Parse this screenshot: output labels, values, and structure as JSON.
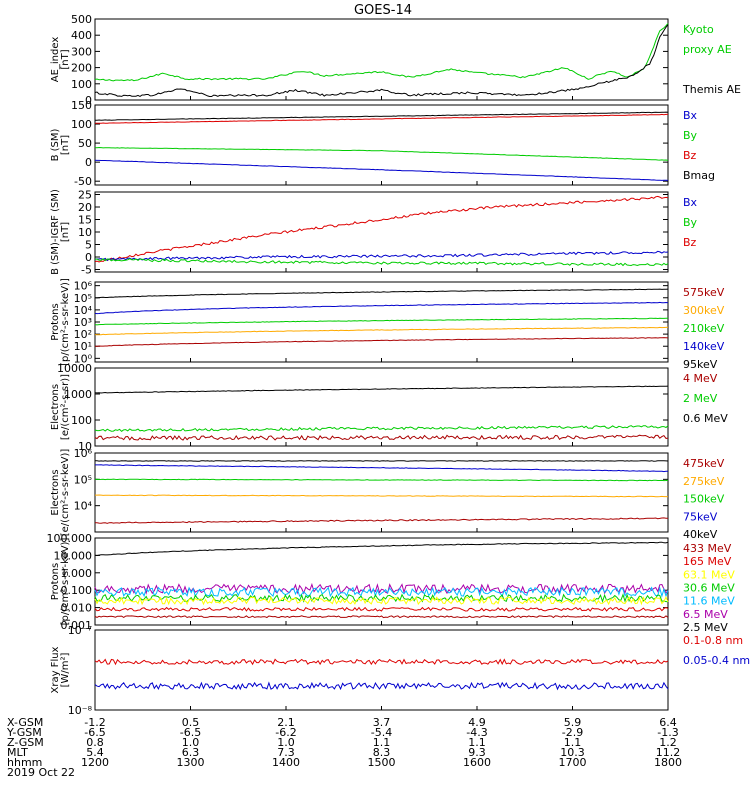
{
  "title": "GOES-14",
  "colors": {
    "black": "#000000",
    "red": "#dd0000",
    "green": "#00cc00",
    "blue": "#0000cc",
    "orange": "#ffaa00",
    "yellow": "#ffff00",
    "cyan": "#00bbff",
    "purple": "#aa00aa",
    "darkred": "#aa0000"
  },
  "chart_data": [
    {
      "type": "line",
      "panel": "ae",
      "ylabel": "AE_index\n[nT]",
      "ylim": [
        0,
        500
      ],
      "ticks": [
        {
          "v": 0,
          "label": "0"
        },
        {
          "v": 100,
          "label": "100"
        },
        {
          "v": 200,
          "label": "200"
        },
        {
          "v": 300,
          "label": "300"
        },
        {
          "v": 400,
          "label": "400"
        },
        {
          "v": 500,
          "label": "500"
        }
      ],
      "legend": [
        {
          "text": "Kyoto",
          "color": "green"
        },
        {
          "text": "proxy AE",
          "color": "green"
        },
        {
          "text": "",
          "color": "black"
        },
        {
          "text": "Themis AE",
          "color": "black"
        }
      ],
      "series": [
        {
          "name": "Kyoto proxy AE",
          "color": "green",
          "base": [
            [
              0,
              125
            ],
            [
              0.07,
              120
            ],
            [
              0.12,
              165
            ],
            [
              0.16,
              130
            ],
            [
              0.3,
              130
            ],
            [
              0.36,
              180
            ],
            [
              0.4,
              150
            ],
            [
              0.5,
              175
            ],
            [
              0.55,
              140
            ],
            [
              0.62,
              190
            ],
            [
              0.66,
              170
            ],
            [
              0.75,
              140
            ],
            [
              0.82,
              200
            ],
            [
              0.86,
              130
            ],
            [
              0.9,
              180
            ],
            [
              0.93,
              140
            ],
            [
              0.96,
              200
            ],
            [
              0.985,
              420
            ],
            [
              1.0,
              470
            ]
          ],
          "noise": 5
        },
        {
          "name": "Themis AE",
          "color": "black",
          "base": [
            [
              0,
              45
            ],
            [
              0.05,
              25
            ],
            [
              0.1,
              30
            ],
            [
              0.15,
              70
            ],
            [
              0.2,
              25
            ],
            [
              0.3,
              30
            ],
            [
              0.35,
              60
            ],
            [
              0.4,
              30
            ],
            [
              0.5,
              60
            ],
            [
              0.55,
              30
            ],
            [
              0.65,
              45
            ],
            [
              0.75,
              30
            ],
            [
              0.85,
              70
            ],
            [
              0.88,
              100
            ],
            [
              0.94,
              150
            ],
            [
              0.97,
              230
            ],
            [
              0.985,
              380
            ],
            [
              1.0,
              470
            ]
          ],
          "noise": 6
        }
      ]
    },
    {
      "type": "line",
      "panel": "b",
      "ylabel": "B (SM)\n[nT]",
      "ylim": [
        -60,
        150
      ],
      "ticks": [
        {
          "v": -50,
          "label": "-50"
        },
        {
          "v": 0,
          "label": "0"
        },
        {
          "v": 50,
          "label": "50"
        },
        {
          "v": 100,
          "label": "100"
        },
        {
          "v": 150,
          "label": "150"
        }
      ],
      "legend": [
        {
          "text": "Bx",
          "color": "blue"
        },
        {
          "text": "By",
          "color": "green"
        },
        {
          "text": "Bz",
          "color": "red"
        },
        {
          "text": "Bmag",
          "color": "black"
        }
      ],
      "series": [
        {
          "name": "Bmag",
          "color": "black",
          "base": [
            [
              0,
              110
            ],
            [
              1,
              131
            ]
          ],
          "noise": 0.5
        },
        {
          "name": "Bz",
          "color": "red",
          "base": [
            [
              0,
              102
            ],
            [
              1,
              125
            ]
          ],
          "noise": 0.5
        },
        {
          "name": "By",
          "color": "green",
          "base": [
            [
              0,
              38
            ],
            [
              0.5,
              30
            ],
            [
              1,
              5
            ]
          ],
          "noise": 0.5
        },
        {
          "name": "Bx",
          "color": "blue",
          "base": [
            [
              0,
              5
            ],
            [
              0.5,
              -20
            ],
            [
              1,
              -48
            ]
          ],
          "noise": 0.5
        }
      ]
    },
    {
      "type": "line",
      "panel": "bdiff",
      "ylabel": "B (SM)-IGRF (SM)\n[nT]",
      "ylim": [
        -6,
        26
      ],
      "ticks": [
        {
          "v": -5,
          "label": "-5"
        },
        {
          "v": 0,
          "label": "0"
        },
        {
          "v": 5,
          "label": "5"
        },
        {
          "v": 10,
          "label": "10"
        },
        {
          "v": 15,
          "label": "15"
        },
        {
          "v": 20,
          "label": "20"
        },
        {
          "v": 25,
          "label": "25"
        }
      ],
      "legend": [
        {
          "text": "Bx",
          "color": "blue"
        },
        {
          "text": "By",
          "color": "green"
        },
        {
          "text": "Bz",
          "color": "red"
        }
      ],
      "series": [
        {
          "name": "Bz",
          "color": "red",
          "base": [
            [
              0,
              -2
            ],
            [
              0.1,
              2
            ],
            [
              0.3,
              9
            ],
            [
              0.5,
              15
            ],
            [
              0.6,
              18
            ],
            [
              0.7,
              20
            ],
            [
              0.85,
              22
            ],
            [
              1,
              24
            ]
          ],
          "noise": 0.5
        },
        {
          "name": "Bx",
          "color": "blue",
          "base": [
            [
              0,
              -1
            ],
            [
              0.3,
              0
            ],
            [
              0.6,
              0.5
            ],
            [
              1,
              2
            ]
          ],
          "noise": 0.5
        },
        {
          "name": "By",
          "color": "green",
          "base": [
            [
              0,
              -1
            ],
            [
              0.3,
              -2
            ],
            [
              0.6,
              -2.5
            ],
            [
              1,
              -3
            ]
          ],
          "noise": 0.5
        }
      ]
    },
    {
      "type": "line",
      "panel": "protons_hi",
      "log": true,
      "ylabel": "Protons\n[p/(cm²-s-sr-keV)]",
      "ylim": [
        0.5,
        2000000
      ],
      "ticks": [
        {
          "v": 1,
          "label": "10⁰"
        },
        {
          "v": 10,
          "label": "10¹"
        },
        {
          "v": 100,
          "label": "10²"
        },
        {
          "v": 1000,
          "label": "10³"
        },
        {
          "v": 10000,
          "label": "10⁴"
        },
        {
          "v": 100000,
          "label": "10⁵"
        },
        {
          "v": 1000000,
          "label": "10⁶"
        }
      ],
      "legend": [
        {
          "text": "575keV",
          "color": "darkred"
        },
        {
          "text": "300keV",
          "color": "orange"
        },
        {
          "text": "210keV",
          "color": "green"
        },
        {
          "text": "140keV",
          "color": "blue"
        },
        {
          "text": "95keV",
          "color": "black"
        }
      ],
      "series": [
        {
          "name": "95keV",
          "color": "black",
          "base": [
            [
              0,
              100000
            ],
            [
              1,
              500000
            ]
          ],
          "noise": 0.02
        },
        {
          "name": "140keV",
          "color": "blue",
          "base": [
            [
              0,
              5000
            ],
            [
              1,
              40000
            ]
          ],
          "noise": 0.02
        },
        {
          "name": "210keV",
          "color": "green",
          "base": [
            [
              0,
              600
            ],
            [
              1,
              2000
            ]
          ],
          "noise": 0.02
        },
        {
          "name": "300keV",
          "color": "orange",
          "base": [
            [
              0,
              90
            ],
            [
              1,
              350
            ]
          ],
          "noise": 0.02
        },
        {
          "name": "575keV",
          "color": "darkred",
          "base": [
            [
              0,
              10
            ],
            [
              1,
              50
            ]
          ],
          "noise": 0.02
        }
      ]
    },
    {
      "type": "line",
      "panel": "electrons_hi",
      "log": true,
      "ylabel": "Electrons\n[e/(cm²-s-sr)]",
      "ylim": [
        10,
        10000
      ],
      "ticks": [
        {
          "v": 10,
          "label": "10"
        },
        {
          "v": 100,
          "label": "100"
        },
        {
          "v": 1000,
          "label": "1000"
        },
        {
          "v": 10000,
          "label": "10000"
        }
      ],
      "legend": [
        {
          "text": "4 MeV",
          "color": "darkred"
        },
        {
          "text": "2 MeV",
          "color": "green"
        },
        {
          "text": "0.6 MeV",
          "color": "black"
        }
      ],
      "series": [
        {
          "name": "0.6 MeV",
          "color": "black",
          "base": [
            [
              0,
              1100
            ],
            [
              1,
              2000
            ]
          ],
          "noise": 0.01
        },
        {
          "name": "2 MeV",
          "color": "green",
          "base": [
            [
              0,
              40
            ],
            [
              1,
              55
            ]
          ],
          "noise": 0.05
        },
        {
          "name": "4 MeV",
          "color": "darkred",
          "base": [
            [
              0,
              20
            ],
            [
              1,
              22
            ]
          ],
          "noise": 0.08
        }
      ]
    },
    {
      "type": "line",
      "panel": "electrons_lo",
      "log": true,
      "ylabel": "Electrons\n[e/(cm²-s-sr-keV)]",
      "ylim": [
        1000,
        1000000
      ],
      "ticks": [
        {
          "v": 10000,
          "label": "10⁴"
        },
        {
          "v": 100000,
          "label": "10⁵"
        },
        {
          "v": 1000000,
          "label": "10⁶"
        }
      ],
      "legend": [
        {
          "text": "475keV",
          "color": "darkred"
        },
        {
          "text": "275keV",
          "color": "orange"
        },
        {
          "text": "150keV",
          "color": "green"
        },
        {
          "text": "75keV",
          "color": "blue"
        },
        {
          "text": "40keV",
          "color": "black"
        }
      ],
      "series": [
        {
          "name": "40keV",
          "color": "black",
          "base": [
            [
              0,
              500000
            ],
            [
              1,
              500000
            ]
          ],
          "noise": 0.01
        },
        {
          "name": "75keV",
          "color": "blue",
          "base": [
            [
              0,
              350000
            ],
            [
              1,
              200000
            ]
          ],
          "noise": 0.01
        },
        {
          "name": "150keV",
          "color": "green",
          "base": [
            [
              0,
              100000
            ],
            [
              1,
              90000
            ]
          ],
          "noise": 0.01
        },
        {
          "name": "275keV",
          "color": "orange",
          "base": [
            [
              0,
              25000
            ],
            [
              1,
              22000
            ]
          ],
          "noise": 0.01
        },
        {
          "name": "475keV",
          "color": "darkred",
          "base": [
            [
              0,
              2200
            ],
            [
              1,
              3300
            ]
          ],
          "noise": 0.02
        }
      ]
    },
    {
      "type": "line",
      "panel": "protons_lo",
      "log": true,
      "ylabel": "Protons\n[p/(cm²-s-sr-keV)]",
      "ylim": [
        0.001,
        100
      ],
      "ticks": [
        {
          "v": 0.001,
          "label": "0.001"
        },
        {
          "v": 0.01,
          "label": "0.010"
        },
        {
          "v": 0.1,
          "label": "0.100"
        },
        {
          "v": 1,
          "label": "1.000"
        },
        {
          "v": 10,
          "label": "10.000"
        },
        {
          "v": 100,
          "label": "100.000"
        }
      ],
      "legend": [
        {
          "text": "433 MeV",
          "color": "darkred"
        },
        {
          "text": "165 MeV",
          "color": "red"
        },
        {
          "text": "63.1 MeV",
          "color": "yellow"
        },
        {
          "text": "30.6 MeV",
          "color": "green"
        },
        {
          "text": "11.6 MeV",
          "color": "cyan"
        },
        {
          "text": "6.5 MeV",
          "color": "purple"
        },
        {
          "text": "2.5 MeV",
          "color": "black"
        }
      ],
      "series": [
        {
          "name": "2.5 MeV",
          "color": "black",
          "base": [
            [
              0,
              10
            ],
            [
              0.4,
              30
            ],
            [
              0.7,
              45
            ],
            [
              1,
              55
            ]
          ],
          "noise": 0.02
        },
        {
          "name": "6.5 MeV",
          "color": "purple",
          "base": [
            [
              0,
              0.12
            ],
            [
              1,
              0.12
            ]
          ],
          "noise": 0.25
        },
        {
          "name": "11.6 MeV",
          "color": "cyan",
          "base": [
            [
              0,
              0.08
            ],
            [
              1,
              0.08
            ]
          ],
          "noise": 0.25
        },
        {
          "name": "30.6 MeV",
          "color": "green",
          "base": [
            [
              0,
              0.035
            ],
            [
              1,
              0.035
            ]
          ],
          "noise": 0.2
        },
        {
          "name": "63.1 MeV",
          "color": "yellow",
          "base": [
            [
              0,
              0.025
            ],
            [
              1,
              0.025
            ]
          ],
          "noise": 0.2
        },
        {
          "name": "165 MeV",
          "color": "red",
          "base": [
            [
              0,
              0.008
            ],
            [
              1,
              0.008
            ]
          ],
          "noise": 0.1
        },
        {
          "name": "433 MeV",
          "color": "darkred",
          "base": [
            [
              0,
              0.003
            ],
            [
              1,
              0.003
            ]
          ],
          "noise": 0.05
        }
      ]
    },
    {
      "type": "line",
      "panel": "xray",
      "log": true,
      "ylabel": "Xray Flux\n[W/m²]",
      "ylim": [
        1e-08,
        1e-07
      ],
      "ticks": [
        {
          "v": 1e-08,
          "label": "10⁻⁸"
        },
        {
          "v": 1e-07,
          "label": "10⁻⁷"
        }
      ],
      "legend": [
        {
          "text": "0.1-0.8 nm",
          "color": "red"
        },
        {
          "text": "0.05-0.4 nm",
          "color": "blue"
        }
      ],
      "series": [
        {
          "name": "0.1-0.8 nm",
          "color": "red",
          "base": [
            [
              0,
              4e-08
            ],
            [
              1,
              4e-08
            ]
          ],
          "noise": 0.03
        },
        {
          "name": "0.05-0.4 nm",
          "color": "blue",
          "base": [
            [
              0,
              2e-08
            ],
            [
              1,
              2e-08
            ]
          ],
          "noise": 0.04
        }
      ]
    }
  ],
  "xaxis": {
    "rows": [
      {
        "label": "X-GSM",
        "values": [
          "-1.2",
          "0.5",
          "2.1",
          "3.7",
          "4.9",
          "5.9",
          "6.4"
        ]
      },
      {
        "label": "Y-GSM",
        "values": [
          "-6.5",
          "-6.5",
          "-6.2",
          "-5.4",
          "-4.3",
          "-2.9",
          "-1.3"
        ]
      },
      {
        "label": "Z-GSM",
        "values": [
          "0.8",
          "1.0",
          "1.0",
          "1.1",
          "1.1",
          "1.1",
          "1.2"
        ]
      },
      {
        "label": "MLT",
        "values": [
          "5.4",
          "6.3",
          "7.3",
          "8.3",
          "9.3",
          "10.3",
          "11.2"
        ]
      },
      {
        "label": "hhmm",
        "values": [
          "1200",
          "1300",
          "1400",
          "1500",
          "1600",
          "1700",
          "1800"
        ]
      }
    ],
    "date": "2019 Oct 22"
  }
}
